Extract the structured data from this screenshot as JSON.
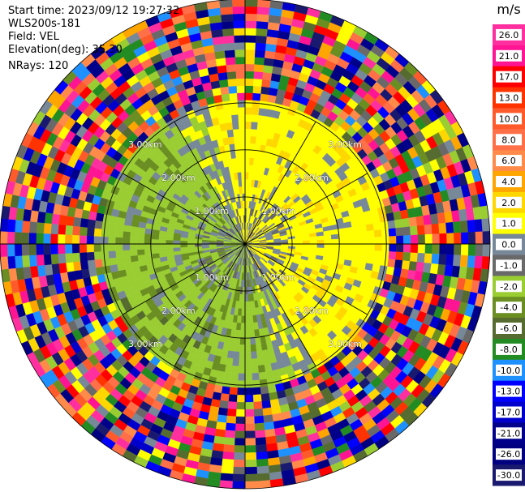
{
  "header": {
    "start_time": "Start time: 2023/09/12 19:27:32",
    "radar": "WLS200s-181",
    "field": "Field: VEL",
    "elevation": "Elevation(deg): 35.30",
    "nrays": "NRays: 120"
  },
  "chart_data": {
    "type": "heatmap",
    "projection": "polar-ppi",
    "title": "",
    "field": "VEL",
    "units": "m/s",
    "n_rays": 120,
    "range_rings_km": [
      1.0,
      2.0,
      3.0
    ],
    "range_ring_labels": [
      "1.00km",
      "2.00km",
      "3.00km"
    ],
    "max_range_km": 5.2,
    "spokes_deg": [
      0,
      30,
      60,
      90,
      120,
      150,
      180,
      210,
      240,
      270,
      300,
      330
    ],
    "colorbar": {
      "title": "m/s",
      "ticks": [
        "26.0",
        "21.0",
        "17.0",
        "13.0",
        "10.0",
        "8.0",
        "6.0",
        "4.0",
        "2.0",
        "1.0",
        "0.0",
        "-1.0",
        "-2.0",
        "-4.0",
        "-6.0",
        "-8.0",
        "-10.0",
        "-13.0",
        "-17.0",
        "-21.0",
        "-26.0",
        "-30.0"
      ],
      "bins": [
        {
          "min": 26,
          "max": 30,
          "color": "#ff2fa0"
        },
        {
          "min": 21,
          "max": 26,
          "color": "#ff1493"
        },
        {
          "min": 17,
          "max": 21,
          "color": "#ff0000"
        },
        {
          "min": 13,
          "max": 17,
          "color": "#ff3200"
        },
        {
          "min": 10,
          "max": 13,
          "color": "#ff5a2b"
        },
        {
          "min": 8,
          "max": 10,
          "color": "#ff6f48"
        },
        {
          "min": 6,
          "max": 8,
          "color": "#ff8a4a"
        },
        {
          "min": 4,
          "max": 6,
          "color": "#ffa500"
        },
        {
          "min": 2,
          "max": 4,
          "color": "#ffd700"
        },
        {
          "min": 1,
          "max": 2,
          "color": "#ffff00"
        },
        {
          "min": 0,
          "max": 1,
          "color": "#778899"
        },
        {
          "min": -1,
          "max": 0,
          "color": "#696969"
        },
        {
          "min": -2,
          "max": -1,
          "color": "#9acd32"
        },
        {
          "min": -4,
          "max": -2,
          "color": "#6b8e23"
        },
        {
          "min": -6,
          "max": -4,
          "color": "#556b2f"
        },
        {
          "min": -8,
          "max": -6,
          "color": "#228b22"
        },
        {
          "min": -10,
          "max": -8,
          "color": "#1e90ff"
        },
        {
          "min": -13,
          "max": -10,
          "color": "#0000ff"
        },
        {
          "min": -17,
          "max": -13,
          "color": "#0000cd"
        },
        {
          "min": -21,
          "max": -17,
          "color": "#00008b"
        },
        {
          "min": -26,
          "max": -21,
          "color": "#000080"
        },
        {
          "min": -30,
          "max": -26,
          "color": "#191970"
        }
      ]
    },
    "regions": [
      {
        "note": "northeast sector, positive velocities",
        "azimuth_deg": [
          0,
          135
        ],
        "range_km": [
          0,
          3.0
        ],
        "velocity_ms": [
          1,
          4
        ]
      },
      {
        "note": "southwest sector, negative velocities",
        "azimuth_deg": [
          180,
          315
        ],
        "range_km": [
          0,
          3.0
        ],
        "velocity_ms": [
          -4,
          -1
        ]
      },
      {
        "note": "outer range, noisy returns",
        "azimuth_deg": [
          0,
          360
        ],
        "range_km": [
          3.0,
          5.2
        ],
        "velocity_ms": [
          -30,
          30
        ]
      }
    ]
  }
}
